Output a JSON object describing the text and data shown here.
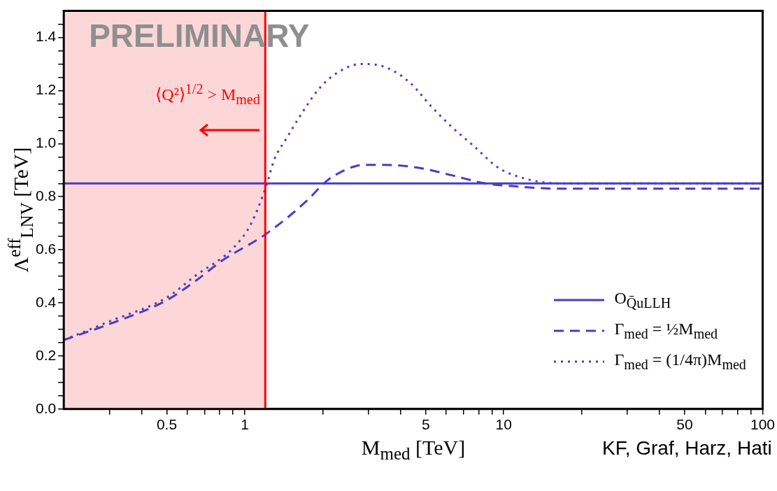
{
  "chart_data": {
    "type": "line",
    "xlabel": "M$_{med}$ [TeV]",
    "ylabel": "Λ$^{eff}$$_{LNV}$ [TeV]",
    "annotations": [
      "PRELIMINARY",
      "KF, Graf, Harz, Hati"
    ],
    "log": "x",
    "xlim": [
      0.2,
      100
    ],
    "xticks": [
      {
        "value": 0.3,
        "label": null
      },
      {
        "value": 0.4,
        "label": null
      },
      0.5,
      {
        "value": 0.6,
        "label": null
      },
      {
        "value": 0.7,
        "label": null
      },
      {
        "value": 0.8,
        "label": null
      },
      {
        "value": 0.9,
        "label": null
      },
      1,
      {
        "value": 2,
        "label": null
      },
      {
        "value": 3,
        "label": null
      },
      {
        "value": 4,
        "label": null
      },
      5,
      {
        "value": 6,
        "label": null
      },
      {
        "value": 7,
        "label": null
      },
      {
        "value": 8,
        "label": null
      },
      {
        "value": 9,
        "label": null
      },
      10,
      {
        "value": 20,
        "label": null
      },
      {
        "value": 30,
        "label": null
      },
      {
        "value": 40,
        "label": null
      },
      50,
      {
        "value": 60,
        "label": null
      },
      {
        "value": 70,
        "label": null
      },
      {
        "value": 80,
        "label": null
      },
      {
        "value": 90,
        "label": null
      },
      100
    ],
    "ylim": [
      0,
      1.5
    ],
    "yticks": [
      {
        "value": 0,
        "label": "0.0"
      },
      {
        "value": 0.05,
        "label": null
      },
      {
        "value": 0.1,
        "label": null
      },
      {
        "value": 0.15,
        "label": null
      },
      {
        "value": 0.2,
        "label": "0.2"
      },
      {
        "value": 0.25,
        "label": null
      },
      {
        "value": 0.3,
        "label": null
      },
      {
        "value": 0.35,
        "label": null
      },
      {
        "value": 0.4,
        "label": "0.4"
      },
      {
        "value": 0.45,
        "label": null
      },
      {
        "value": 0.5,
        "label": null
      },
      {
        "value": 0.55,
        "label": null
      },
      {
        "value": 0.6,
        "label": "0.6"
      },
      {
        "value": 0.65,
        "label": null
      },
      {
        "value": 0.7,
        "label": null
      },
      {
        "value": 0.75,
        "label": null
      },
      {
        "value": 0.8,
        "label": "0.8"
      },
      {
        "value": 0.85,
        "label": null
      },
      {
        "value": 0.9,
        "label": null
      },
      {
        "value": 0.95,
        "label": null
      },
      {
        "value": 1,
        "label": "1.0"
      },
      {
        "value": 1.05,
        "label": null
      },
      {
        "value": 1.1,
        "label": null
      },
      {
        "value": 1.15,
        "label": null
      },
      {
        "value": 1.2,
        "label": "1.2"
      },
      {
        "value": 1.25,
        "label": null
      },
      {
        "value": 1.3,
        "label": null
      },
      {
        "value": 1.35,
        "label": null
      },
      {
        "value": 1.4,
        "label": "1.4"
      },
      {
        "value": 1.45,
        "label": null
      }
    ],
    "grid": false,
    "legend": "bottom right",
    "marker": "none",
    "bands": [
      {
        "axis": "x",
        "from": 0.2,
        "to": 1.2,
        "label": "⟨Q²⟩$^{1/2}$ > M$_{med}$",
        "color": "#fdd7d7"
      }
    ],
    "ref_lines": [
      {
        "axis": "x",
        "value": 1.2,
        "color": "#ff0000",
        "line_style": "solid"
      }
    ],
    "series": [
      {
        "name": "O$_{Q̄uLLH}$",
        "color": "#4a3cc4",
        "line_style": "solid",
        "x": [
          0.2,
          100
        ],
        "values": [
          0.85,
          0.85
        ]
      },
      {
        "name": "Γ$_{med}$ = ½M$_{med}$",
        "color": "#4a3cc8",
        "line_style": "dashed",
        "x": [
          0.2,
          0.3,
          0.5,
          0.64,
          0.82,
          1.21,
          1.76,
          2.02,
          2.22,
          2.91,
          3.45,
          4.62,
          6.35,
          8.5,
          10.8,
          16.4,
          30,
          100
        ],
        "values": [
          0.26,
          0.32,
          0.41,
          0.48,
          0.56,
          0.66,
          0.79,
          0.85,
          0.88,
          0.92,
          0.92,
          0.91,
          0.88,
          0.85,
          0.84,
          0.83,
          0.83,
          0.83
        ]
      },
      {
        "name": "Γ$_{med}$ = (1/4π)M$_{med}$",
        "color": "#4a3cc8",
        "line_style": "dotted",
        "x": [
          0.2,
          0.3,
          0.5,
          0.64,
          0.91,
          1.06,
          1.21,
          1.3,
          1.45,
          1.65,
          1.91,
          2.22,
          2.82,
          3.45,
          4.34,
          5.25,
          6.35,
          7.68,
          9.5,
          11.9,
          16.4,
          30,
          100
        ],
        "values": [
          0.26,
          0.33,
          0.42,
          0.5,
          0.61,
          0.7,
          0.84,
          0.94,
          1.02,
          1.11,
          1.2,
          1.26,
          1.3,
          1.29,
          1.23,
          1.14,
          1.06,
          0.99,
          0.91,
          0.87,
          0.85,
          0.85,
          0.85
        ]
      }
    ]
  }
}
